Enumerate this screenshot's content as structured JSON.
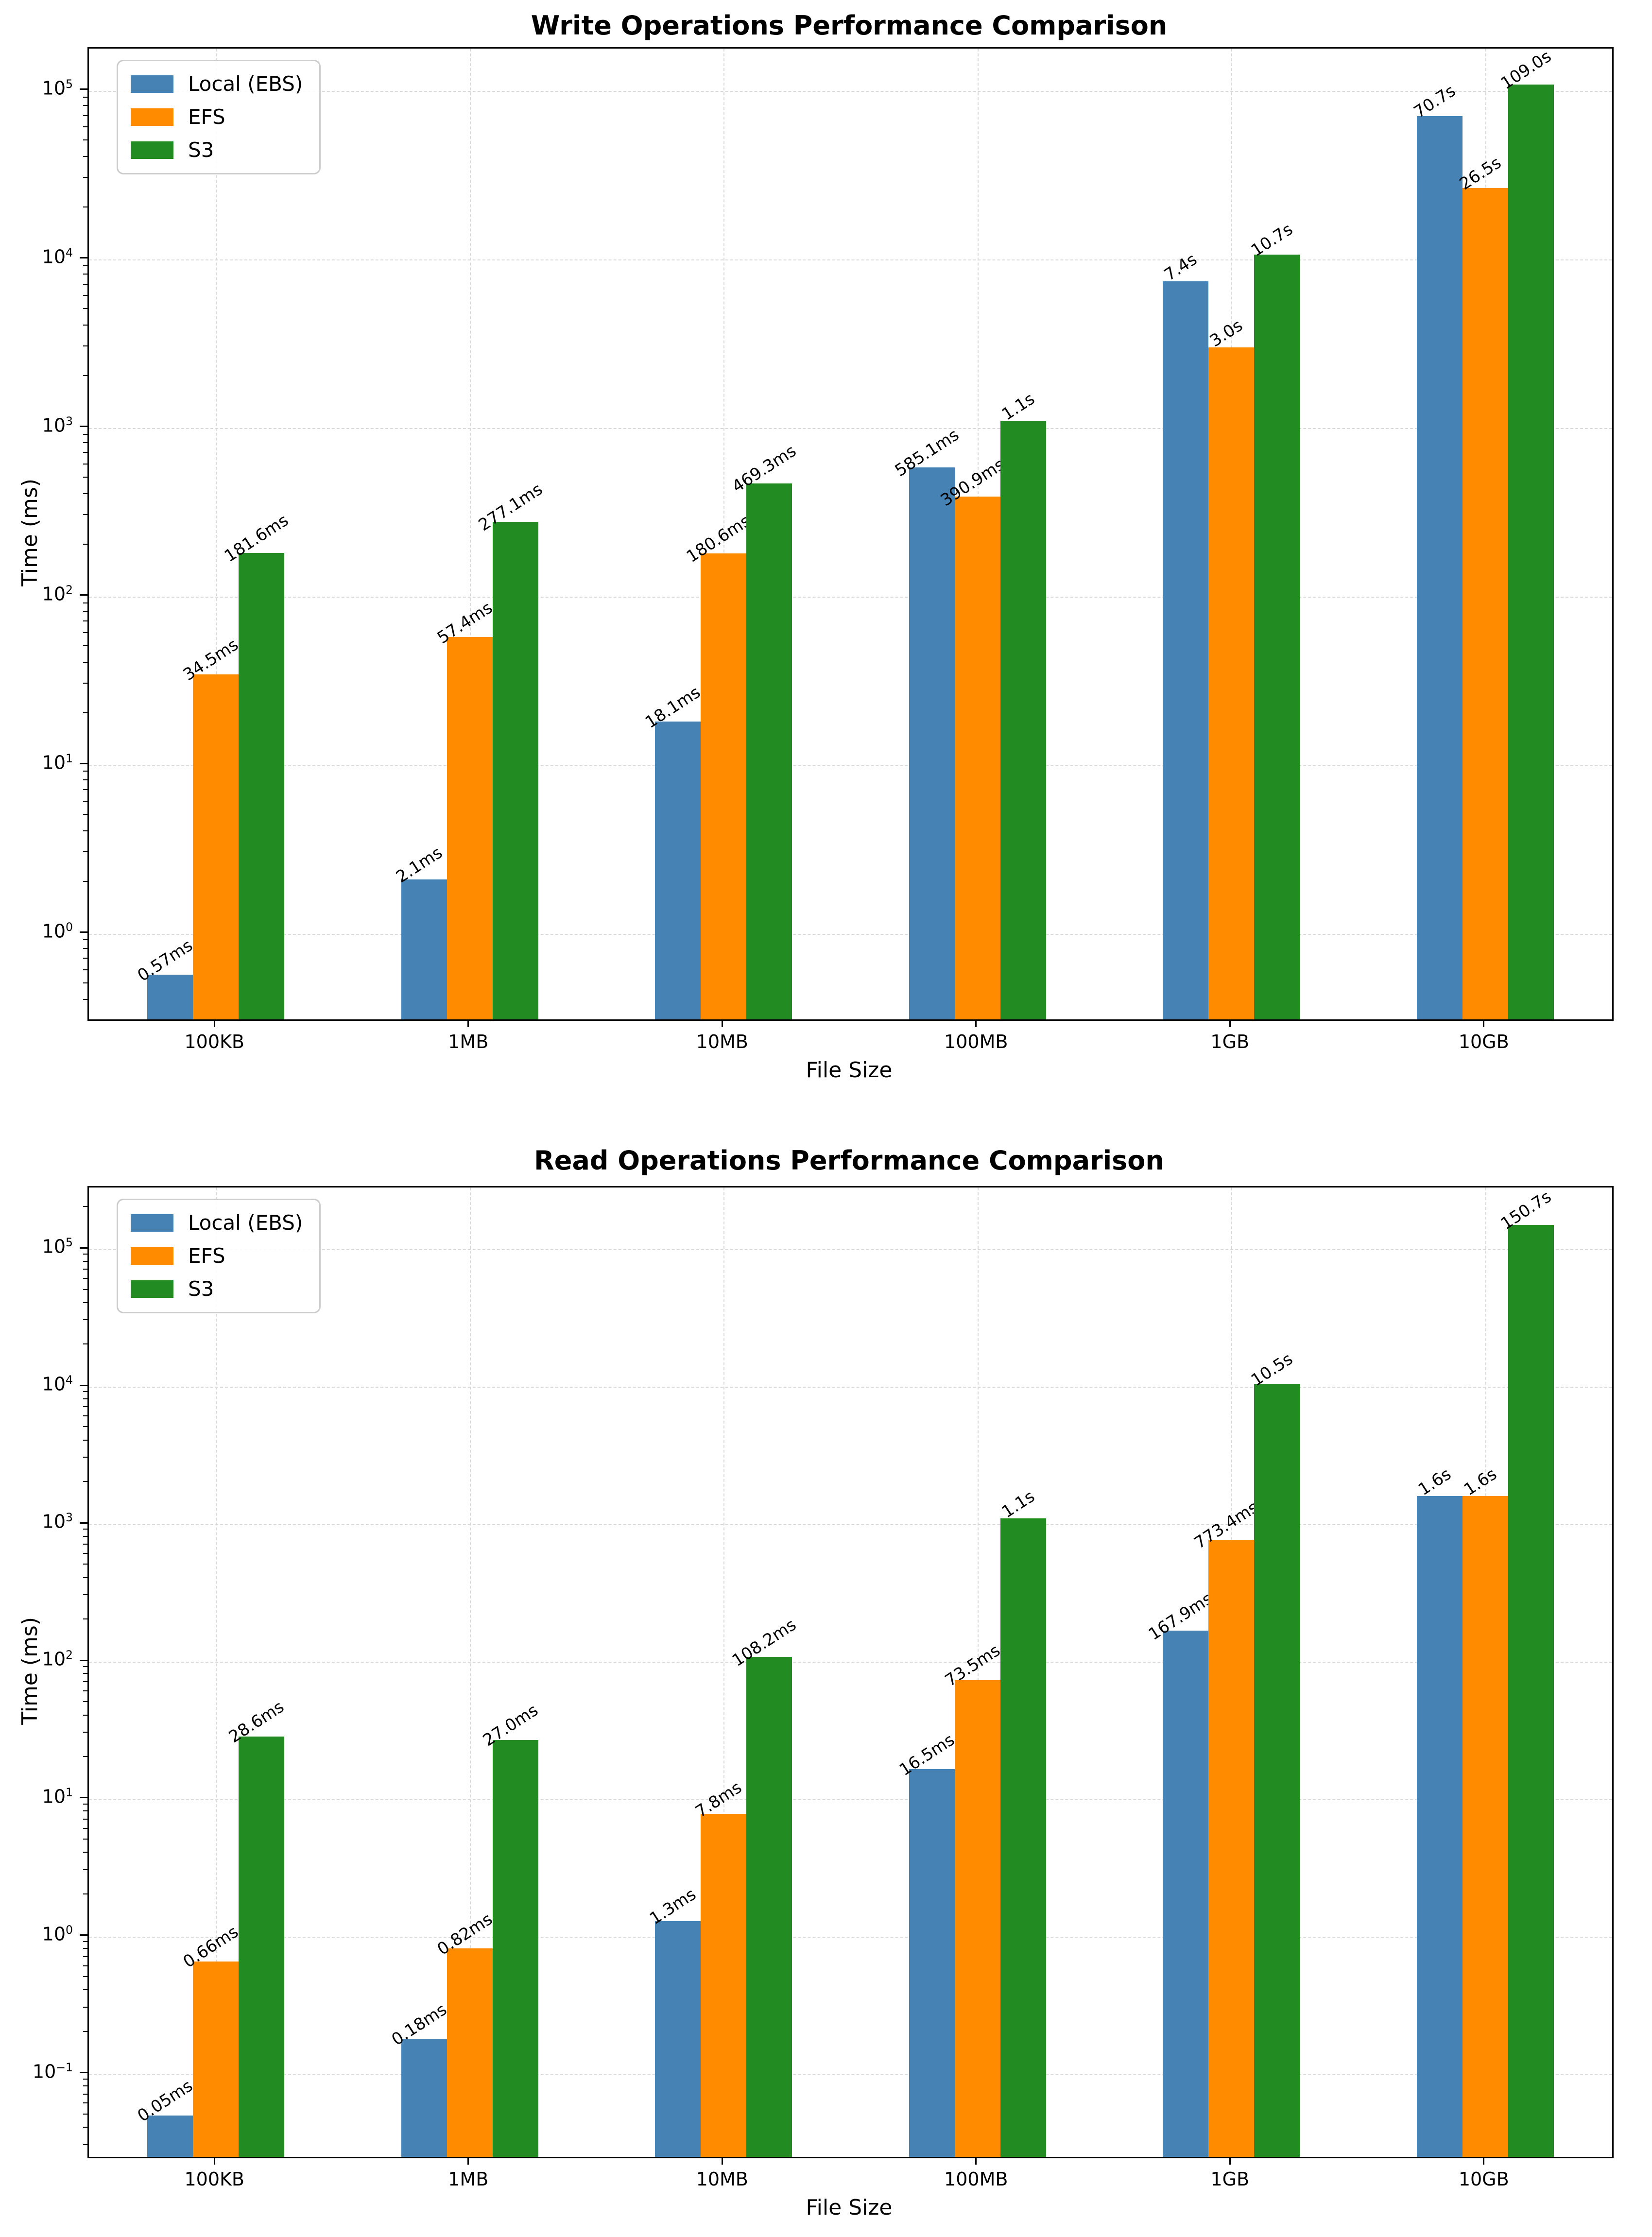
{
  "figure": {
    "background": "#ffffff",
    "text_color": "#000000",
    "grid_color": "#d9d9d9",
    "spine_color": "#000000"
  },
  "chart_data": [
    {
      "type": "bar",
      "title": "Write Operations Performance Comparison",
      "xlabel": "File Size",
      "ylabel": "Time (ms)",
      "yscale": "log",
      "grid": "dashed",
      "legend_position": "upper left",
      "categories": [
        "100KB",
        "1MB",
        "10MB",
        "100MB",
        "1GB",
        "10GB"
      ],
      "ytick_exponents": [
        0,
        1,
        2,
        3,
        4,
        5
      ],
      "ytick_labels": [
        "10^0",
        "10^1",
        "10^2",
        "10^3",
        "10^4",
        "10^5"
      ],
      "ylim": [
        0.31,
        178000
      ],
      "series": [
        {
          "name": "Local (EBS)",
          "color": "#4682B4",
          "values": [
            0.57,
            2.1,
            18.1,
            585.1,
            7400,
            70700
          ],
          "labels": [
            "0.57ms",
            "2.1ms",
            "18.1ms",
            "585.1ms",
            "7.4s",
            "70.7s"
          ]
        },
        {
          "name": "EFS",
          "color": "#FF8C00",
          "values": [
            34.5,
            57.4,
            180.6,
            390.9,
            3000,
            26500
          ],
          "labels": [
            "34.5ms",
            "57.4ms",
            "180.6ms",
            "390.9ms",
            "3.0s",
            "26.5s"
          ]
        },
        {
          "name": "S3",
          "color": "#228B22",
          "values": [
            181.6,
            277.1,
            469.3,
            1100,
            10700,
            109000
          ],
          "labels": [
            "181.6ms",
            "277.1ms",
            "469.3ms",
            "1.1s",
            "10.7s",
            "109.0s"
          ]
        }
      ]
    },
    {
      "type": "bar",
      "title": "Read Operations Performance Comparison",
      "xlabel": "File Size",
      "ylabel": "Time (ms)",
      "yscale": "log",
      "grid": "dashed",
      "legend_position": "upper left",
      "categories": [
        "100KB",
        "1MB",
        "10MB",
        "100MB",
        "1GB",
        "10GB"
      ],
      "ytick_exponents": [
        -1,
        0,
        1,
        2,
        3,
        4,
        5
      ],
      "ytick_labels": [
        "10^-1",
        "10^0",
        "10^1",
        "10^2",
        "10^3",
        "10^4",
        "10^5"
      ],
      "ylim": [
        0.025,
        282000
      ],
      "series": [
        {
          "name": "Local (EBS)",
          "color": "#4682B4",
          "values": [
            0.05,
            0.18,
            1.3,
            16.5,
            167.9,
            1600
          ],
          "labels": [
            "0.05ms",
            "0.18ms",
            "1.3ms",
            "16.5ms",
            "167.9ms",
            "1.6s"
          ]
        },
        {
          "name": "EFS",
          "color": "#FF8C00",
          "values": [
            0.66,
            0.82,
            7.8,
            73.5,
            773.4,
            1600
          ],
          "labels": [
            "0.66ms",
            "0.82ms",
            "7.8ms",
            "73.5ms",
            "773.4ms",
            "1.6s"
          ]
        },
        {
          "name": "S3",
          "color": "#228B22",
          "values": [
            28.6,
            27.0,
            108.2,
            1100,
            10500,
            150700
          ],
          "labels": [
            "28.6ms",
            "27.0ms",
            "108.2ms",
            "1.1s",
            "10.5s",
            "150.7s"
          ]
        }
      ]
    }
  ]
}
